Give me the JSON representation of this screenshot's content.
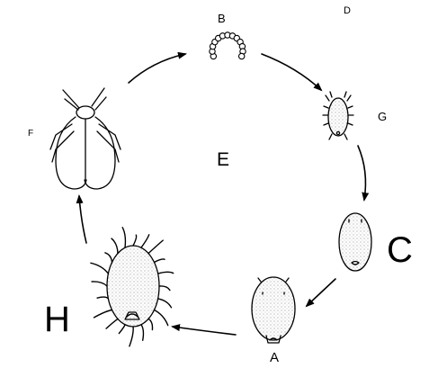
{
  "labels": {
    "A": "A",
    "B": "B",
    "C": "C",
    "D": "D",
    "E": "E",
    "F": "F",
    "G": "G",
    "H": "H"
  },
  "colors": {
    "ink": "#000000",
    "background": "#ffffff",
    "stipple": "#9a9a9a"
  },
  "stages": [
    {
      "id": "B",
      "depicts": "egg-cluster-arc"
    },
    {
      "id": "G",
      "depicts": "crawler-nymph"
    },
    {
      "id": "C",
      "depicts": "settled-nymph"
    },
    {
      "id": "A",
      "depicts": "second-instar-nymph"
    },
    {
      "id": "H",
      "depicts": "hairy-female-adult"
    },
    {
      "id": "F",
      "depicts": "winged-male-adult"
    }
  ],
  "cycle_order": [
    "B",
    "G",
    "C",
    "A",
    "H",
    "F"
  ]
}
